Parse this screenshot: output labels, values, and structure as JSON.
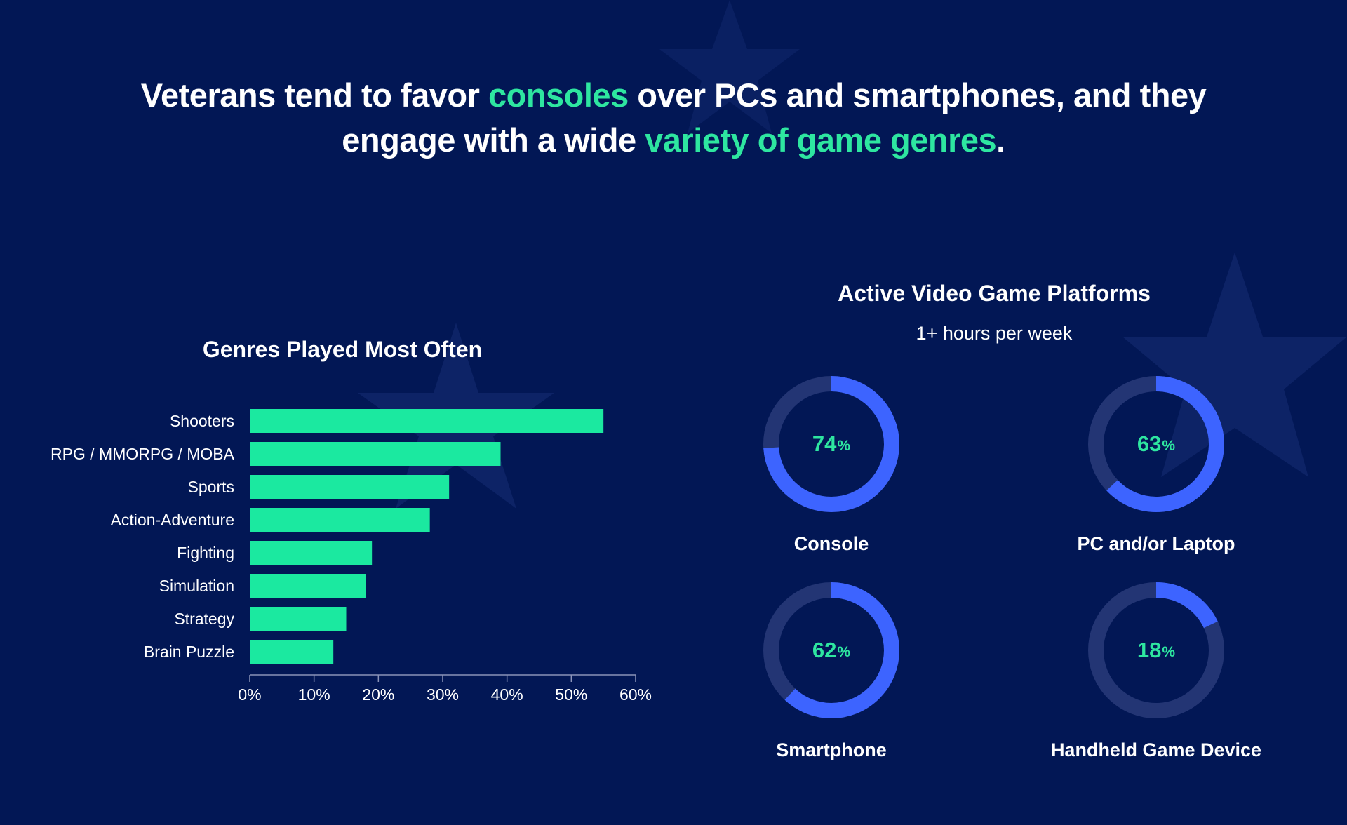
{
  "headline": {
    "part1": "Veterans tend to favor ",
    "highlight1": "consoles",
    "part2": " over PCs and smartphones, and they engage with a wide ",
    "highlight2": "variety of game genres",
    "part3": "."
  },
  "colors": {
    "background": "#021755",
    "accent_green": "#2ee6a0",
    "bar_fill": "#1be9a0",
    "ring_blue": "#3d64ff",
    "ring_track": "#233574"
  },
  "chart_data": [
    {
      "type": "bar",
      "orientation": "horizontal",
      "title": "Genres Played Most Often",
      "categories": [
        "Shooters",
        "RPG / MMORPG / MOBA",
        "Sports",
        "Action-Adventure",
        "Fighting",
        "Simulation",
        "Strategy",
        "Brain Puzzle"
      ],
      "values": [
        55,
        39,
        31,
        28,
        19,
        18,
        15,
        13
      ],
      "xlim": [
        0,
        60
      ],
      "xticks": [
        "0%",
        "10%",
        "20%",
        "30%",
        "40%",
        "50%",
        "60%"
      ],
      "grid": false
    },
    {
      "type": "pie",
      "style": "donut",
      "title": "Active Video Game Platforms",
      "subtitle": "1+ hours per week",
      "unit": "%",
      "items": [
        {
          "label": "Console",
          "value": 74
        },
        {
          "label": "PC and/or Laptop",
          "value": 63
        },
        {
          "label": "Smartphone",
          "value": 62
        },
        {
          "label": "Handheld Game Device",
          "value": 18
        }
      ]
    }
  ]
}
